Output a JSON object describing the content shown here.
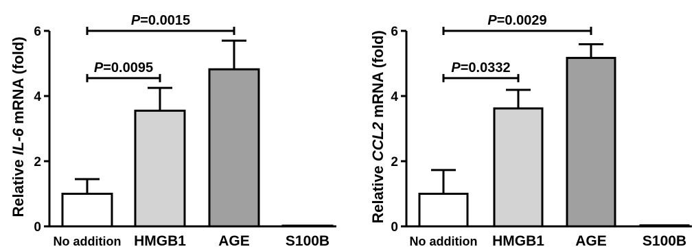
{
  "chart_data": [
    {
      "type": "bar",
      "categories": [
        "No addition",
        "HMGB1",
        "AGE",
        "S100B"
      ],
      "values": [
        1.0,
        3.55,
        4.82,
        0.02
      ],
      "errors": [
        0.45,
        0.7,
        0.88,
        0.0
      ],
      "colors": [
        "#ffffff",
        "#d3d3d3",
        "#a0a0a0",
        "#ffffff"
      ],
      "ylabel": {
        "prefix": "Relative ",
        "gene": "IL-6",
        "suffix": " mRNA (fold)"
      },
      "ylim": [
        0,
        6
      ],
      "yticks": [
        0,
        2,
        4,
        6
      ],
      "brackets": [
        {
          "from": 0,
          "to": 2,
          "y": 6.0,
          "p_symbol": "P",
          "p_value": "=0.0015"
        },
        {
          "from": 0,
          "to": 1,
          "y": 4.55,
          "p_symbol": "P",
          "p_value": "=0.0095"
        }
      ],
      "grid": false
    },
    {
      "type": "bar",
      "categories": [
        "No addition",
        "HMGB1",
        "AGE",
        "S100B"
      ],
      "values": [
        1.0,
        3.62,
        5.17,
        0.03
      ],
      "errors": [
        0.73,
        0.57,
        0.42,
        0.0
      ],
      "colors": [
        "#ffffff",
        "#d3d3d3",
        "#a0a0a0",
        "#ffffff"
      ],
      "ylabel": {
        "prefix": "Relative ",
        "gene": "CCL2",
        "suffix": " mRNA (fold)"
      },
      "ylim": [
        0,
        6
      ],
      "yticks": [
        0,
        2,
        4,
        6
      ],
      "brackets": [
        {
          "from": 0,
          "to": 2,
          "y": 6.0,
          "p_symbol": "P",
          "p_value": "=0.0029"
        },
        {
          "from": 0,
          "to": 1,
          "y": 4.55,
          "p_symbol": "P",
          "p_value": "=0.0332"
        }
      ],
      "grid": false
    }
  ]
}
